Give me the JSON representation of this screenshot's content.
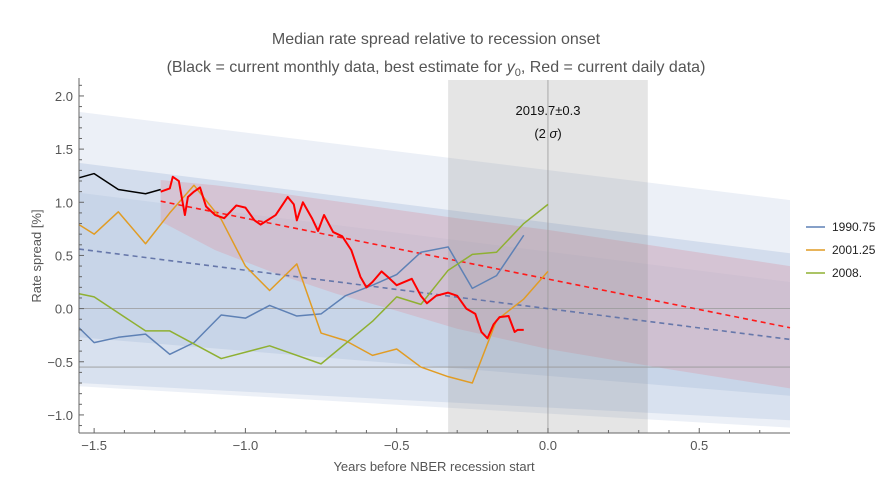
{
  "chart_data": {
    "type": "line",
    "title": "Median rate spread relative to recession onset",
    "subtitle": {
      "pre": "(Black = current monthly data, best estimate for ",
      "var": "y",
      "sub": "0",
      "post": ", Red = current daily data)"
    },
    "xlabel": "Years before NBER recession start",
    "ylabel": "Rate spread [%]",
    "xlim": [
      -1.55,
      0.8
    ],
    "ylim": [
      -1.17,
      2.15
    ],
    "xticks": [
      -1.5,
      -1.0,
      -0.5,
      0.0,
      0.5
    ],
    "xtick_labels": [
      "−1.5",
      "−1.0",
      "−0.5",
      "0.0",
      "0.5"
    ],
    "yticks": [
      -1.0,
      -0.5,
      0.0,
      0.5,
      1.0,
      1.5,
      2.0
    ],
    "ytick_labels": [
      "−1.0",
      "−0.5",
      "0.0",
      "0.5",
      "1.0",
      "1.5",
      "2.0"
    ],
    "annotation": {
      "line1": "2019.7±0.3",
      "line2_pre": "(2 ",
      "line2_sigma": "σ",
      "line2_post": ")",
      "x": 0.0,
      "y": 1.75
    },
    "estimate_window": [
      -0.33,
      0.33
    ],
    "horizontal_lines": [
      0.0,
      -0.55
    ],
    "vertical_lines": [
      0.0
    ],
    "bands": [
      {
        "color": "#c9d5e8",
        "opacity": 0.35,
        "x": [
          -1.55,
          0.8
        ],
        "upper": [
          1.85,
          1.02
        ],
        "lower": [
          -0.73,
          -1.12
        ]
      },
      {
        "color": "#b5c6e0",
        "opacity": 0.45,
        "x": [
          -1.55,
          0.8
        ],
        "upper": [
          1.37,
          0.52
        ],
        "lower": [
          -0.27,
          -0.82
        ]
      },
      {
        "color": "#b5c6e0",
        "opacity": 0.35,
        "x": [
          -1.55,
          0.8
        ],
        "upper": [
          1.09,
          0.25
        ],
        "lower": [
          -0.7,
          -1.05
        ]
      }
    ],
    "red_band": {
      "color": "#d9a0b0",
      "opacity": 0.4,
      "x": [
        -1.28,
        -1.1,
        -0.9,
        -0.7,
        -0.5,
        -0.3,
        0.0,
        0.4,
        0.8
      ],
      "upper": [
        1.21,
        1.16,
        1.09,
        1.01,
        0.93,
        0.85,
        0.74,
        0.57,
        0.4
      ],
      "lower": [
        0.82,
        0.55,
        0.33,
        0.14,
        -0.02,
        -0.19,
        -0.38,
        -0.57,
        -0.75
      ]
    },
    "fits": [
      {
        "color": "#6677aa",
        "x": [
          -1.55,
          0.8
        ],
        "y": [
          0.56,
          -0.29
        ],
        "dashed": true
      },
      {
        "color": "#ff1a1a",
        "x": [
          -1.28,
          0.8
        ],
        "y": [
          1.01,
          -0.18
        ],
        "dashed": true
      }
    ],
    "series": [
      {
        "name": "1990.75",
        "color": "#5e81b5",
        "x": [
          -1.55,
          -1.5,
          -1.42,
          -1.33,
          -1.25,
          -1.17,
          -1.08,
          -1.0,
          -0.92,
          -0.83,
          -0.75,
          -0.67,
          -0.58,
          -0.5,
          -0.42,
          -0.33,
          -0.25,
          -0.17,
          -0.08
        ],
        "y": [
          -0.18,
          -0.32,
          -0.27,
          -0.24,
          -0.43,
          -0.32,
          -0.06,
          -0.09,
          0.03,
          -0.07,
          -0.05,
          0.12,
          0.22,
          0.32,
          0.53,
          0.58,
          0.19,
          0.31,
          0.69
        ]
      },
      {
        "name": "2001.25",
        "color": "#e19c24",
        "x": [
          -1.55,
          -1.5,
          -1.42,
          -1.33,
          -1.25,
          -1.17,
          -1.08,
          -1.0,
          -0.92,
          -0.83,
          -0.75,
          -0.67,
          -0.58,
          -0.5,
          -0.42,
          -0.33,
          -0.25,
          -0.17,
          -0.08,
          0.0
        ],
        "y": [
          0.79,
          0.7,
          0.91,
          0.61,
          0.9,
          1.16,
          0.84,
          0.4,
          0.17,
          0.42,
          -0.23,
          -0.3,
          -0.44,
          -0.38,
          -0.55,
          -0.64,
          -0.7,
          -0.11,
          0.09,
          0.35
        ]
      },
      {
        "name": "2008.",
        "color": "#8fb032",
        "x": [
          -1.55,
          -1.5,
          -1.33,
          -1.25,
          -1.08,
          -0.92,
          -0.75,
          -0.58,
          -0.5,
          -0.42,
          -0.33,
          -0.25,
          -0.17,
          -0.08,
          0.0
        ],
        "y": [
          0.14,
          0.11,
          -0.21,
          -0.21,
          -0.47,
          -0.35,
          -0.52,
          -0.12,
          0.11,
          0.04,
          0.36,
          0.51,
          0.53,
          0.8,
          0.98
        ]
      },
      {
        "color": "#000000",
        "x": [
          -1.55,
          -1.5,
          -1.42,
          -1.33,
          -1.28
        ],
        "y": [
          1.23,
          1.27,
          1.12,
          1.08,
          1.12
        ]
      },
      {
        "color": "#ff0000",
        "width": 2,
        "x": [
          -1.28,
          -1.25,
          -1.24,
          -1.22,
          -1.2,
          -1.19,
          -1.17,
          -1.15,
          -1.13,
          -1.1,
          -1.07,
          -1.03,
          -1.0,
          -0.97,
          -0.95,
          -0.9,
          -0.86,
          -0.84,
          -0.83,
          -0.81,
          -0.78,
          -0.76,
          -0.74,
          -0.71,
          -0.68,
          -0.65,
          -0.62,
          -0.6,
          -0.58,
          -0.55,
          -0.53,
          -0.5,
          -0.45,
          -0.42,
          -0.4,
          -0.37,
          -0.33,
          -0.3,
          -0.27,
          -0.24,
          -0.22,
          -0.2,
          -0.18,
          -0.16,
          -0.13,
          -0.11,
          -0.1,
          -0.08
        ],
        "y": [
          1.1,
          1.13,
          1.24,
          1.2,
          0.88,
          1.05,
          1.1,
          1.14,
          0.96,
          0.88,
          0.85,
          0.97,
          0.95,
          0.83,
          0.79,
          0.88,
          1.05,
          0.98,
          0.83,
          1.0,
          0.85,
          0.73,
          0.88,
          0.72,
          0.68,
          0.55,
          0.3,
          0.2,
          0.25,
          0.35,
          0.3,
          0.22,
          0.28,
          0.12,
          0.05,
          0.12,
          0.15,
          0.12,
          0.0,
          -0.05,
          -0.22,
          -0.28,
          -0.15,
          -0.08,
          -0.07,
          -0.22,
          -0.2,
          -0.2
        ]
      }
    ],
    "legend": {
      "placement": "right",
      "entries": [
        "1990.75",
        "2001.25",
        "2008."
      ]
    },
    "grid": false
  }
}
